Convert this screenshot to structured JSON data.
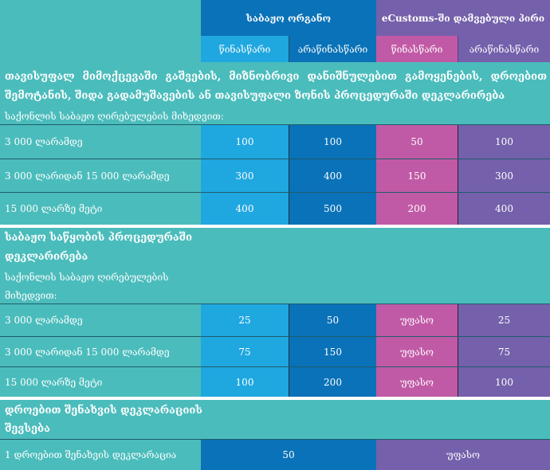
{
  "header": {
    "group1": "საბაჟო ორგანო",
    "group2": "eCustoms-ში დამვებული პირი",
    "sub1": "წინასწარი",
    "sub2": "არაწინასწარი",
    "sub3": "წინასწარი",
    "sub4": "არაწინასწარი"
  },
  "section1": {
    "title_line1": "თავისუფალ მიმოქცევაში გაშვების, მიზნობრივი დანიშნულებით გამოყენების, დროებით",
    "title_line2": "შემოტანის, შიდა გადამუშავების ან თავისუფალი ზონის პროცედურაში დეკლარირება",
    "subtitle": "საქონლის საბაჟო ღირებულების მიხედვით:",
    "rows": [
      {
        "label": "3 000 ლარამდე",
        "v1": "100",
        "v2": "100",
        "v3": "50",
        "v4": "100"
      },
      {
        "label": "3 000 ლარიდან 15 000 ლარამდე",
        "v1": "300",
        "v2": "400",
        "v3": "150",
        "v4": "300"
      },
      {
        "label": "15 000 ლარზე მეტი",
        "v1": "400",
        "v2": "500",
        "v3": "200",
        "v4": "400"
      }
    ]
  },
  "section2": {
    "title_line1": "საბაჟო საწყობის პროცედურაში",
    "title_line2": "დეკლარირება",
    "subtitle_line1": "საქონლის საბაჟო ღირებულების",
    "subtitle_line2": "მიხედვით:",
    "rows": [
      {
        "label": "3 000 ლარამდე",
        "v1": "25",
        "v2": "50",
        "v3": "უფასო",
        "v4": "25"
      },
      {
        "label": "3 000 ლარიდან 15 000 ლარამდე",
        "v1": "75",
        "v2": "150",
        "v3": "უფასო",
        "v4": "75"
      },
      {
        "label": "15 000 ლარზე მეტი",
        "v1": "100",
        "v2": "200",
        "v3": "უფასო",
        "v4": "100"
      }
    ]
  },
  "section3": {
    "title_line1": "დროებით შენახვის დეკლარაციის",
    "title_line2": "შევსება",
    "rows": [
      {
        "label": "1 დროებით შენახვის დეკლარაცია",
        "customs": "50",
        "ecustoms": "უფასო"
      }
    ]
  },
  "colors": {
    "background": "#4bbcbc",
    "col1": "#1fa7e0",
    "col2": "#0a72b8",
    "col3": "#c15aa6",
    "col4": "#7560ab"
  }
}
